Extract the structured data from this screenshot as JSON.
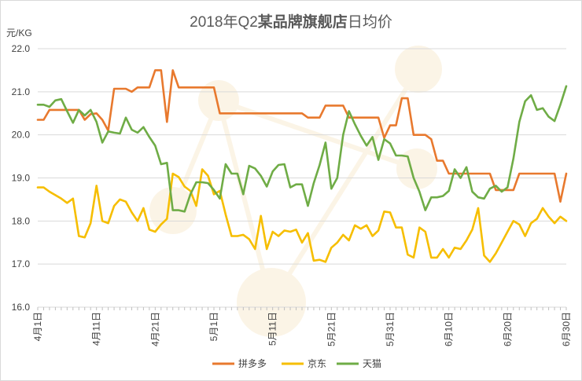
{
  "chart_data": {
    "type": "line",
    "title_prefix": "2018年Q2",
    "title_bold": "某品牌旗舰店",
    "title_suffix": "日均价",
    "ylabel": "元/KG",
    "ylim": [
      16.0,
      22.0
    ],
    "yticks": [
      "16.0",
      "17.0",
      "18.0",
      "19.0",
      "20.0",
      "21.0",
      "22.0"
    ],
    "xtick_labels": [
      "4月1日",
      "4月11日",
      "4月21日",
      "5月1日",
      "5月11日",
      "5月21日",
      "5月31日",
      "6月10日",
      "6月20日",
      "6月30日"
    ],
    "xtick_days": [
      0,
      10,
      20,
      30,
      40,
      50,
      60,
      70,
      80,
      90
    ],
    "n_days": 91,
    "series": [
      {
        "name": "拼多多",
        "color": "#E8792E",
        "values": [
          20.35,
          20.35,
          20.58,
          20.58,
          20.58,
          20.58,
          20.58,
          20.58,
          20.35,
          20.48,
          20.5,
          20.35,
          20.1,
          21.07,
          21.07,
          21.07,
          21.0,
          21.1,
          21.1,
          21.1,
          21.5,
          21.5,
          20.3,
          21.5,
          21.1,
          21.1,
          21.1,
          21.1,
          21.1,
          21.1,
          21.1,
          20.5,
          20.5,
          20.5,
          20.5,
          20.5,
          20.5,
          20.5,
          20.5,
          20.5,
          20.5,
          20.5,
          20.5,
          20.5,
          20.5,
          20.5,
          20.4,
          20.4,
          20.4,
          20.68,
          20.68,
          20.68,
          20.68,
          20.4,
          20.4,
          20.4,
          20.4,
          20.4,
          20.4,
          19.93,
          20.22,
          20.22,
          20.85,
          20.85,
          20.0,
          20.0,
          20.0,
          19.9,
          19.4,
          19.4,
          19.1,
          19.1,
          19.1,
          19.1,
          19.1,
          19.1,
          19.1,
          19.1,
          18.72,
          18.72,
          18.72,
          18.72,
          19.1,
          19.1,
          19.1,
          19.1,
          19.1,
          19.1,
          19.1,
          18.45,
          19.1
        ]
      },
      {
        "name": "京东",
        "color": "#F6BE00",
        "values": [
          18.78,
          18.78,
          18.68,
          18.6,
          18.52,
          18.42,
          18.52,
          17.65,
          17.62,
          17.95,
          18.82,
          18.0,
          17.95,
          18.35,
          18.5,
          18.45,
          18.2,
          18.0,
          18.3,
          17.8,
          17.75,
          17.92,
          18.05,
          19.1,
          19.02,
          18.8,
          18.7,
          18.35,
          19.2,
          19.05,
          18.62,
          18.7,
          18.15,
          17.65,
          17.65,
          17.68,
          17.58,
          17.35,
          18.12,
          17.35,
          17.75,
          17.65,
          17.78,
          17.75,
          17.8,
          17.5,
          17.72,
          17.08,
          17.1,
          17.05,
          17.38,
          17.5,
          17.68,
          17.55,
          17.9,
          17.82,
          17.9,
          17.65,
          17.78,
          18.22,
          18.2,
          17.85,
          17.85,
          17.22,
          17.15,
          17.85,
          17.75,
          17.15,
          17.15,
          17.35,
          17.15,
          17.38,
          17.35,
          17.55,
          17.8,
          18.3,
          17.2,
          17.05,
          17.25,
          17.5,
          17.75,
          18.0,
          17.92,
          17.65,
          17.95,
          18.05,
          18.3,
          18.1,
          17.95,
          18.1,
          18.0
        ]
      },
      {
        "name": "天猫",
        "color": "#6FAC46",
        "values": [
          20.7,
          20.7,
          20.65,
          20.8,
          20.83,
          20.55,
          20.28,
          20.58,
          20.45,
          20.58,
          20.3,
          19.82,
          20.08,
          20.05,
          20.03,
          20.4,
          20.12,
          20.05,
          20.18,
          19.95,
          19.75,
          19.32,
          19.35,
          18.25,
          18.25,
          18.22,
          18.62,
          18.9,
          18.9,
          18.88,
          18.72,
          18.52,
          19.32,
          19.1,
          19.1,
          18.62,
          19.28,
          19.22,
          19.05,
          18.8,
          19.15,
          19.3,
          19.32,
          18.78,
          18.85,
          18.85,
          18.35,
          18.88,
          19.3,
          19.82,
          18.75,
          19.0,
          20.0,
          20.55,
          20.25,
          19.98,
          19.75,
          19.95,
          19.42,
          19.9,
          19.8,
          19.52,
          19.52,
          19.5,
          19.0,
          18.68,
          18.25,
          18.55,
          18.55,
          18.58,
          18.7,
          19.2,
          19.0,
          19.25,
          18.68,
          18.55,
          18.52,
          18.75,
          18.82,
          18.68,
          18.78,
          19.45,
          20.3,
          20.78,
          20.92,
          20.58,
          20.62,
          20.42,
          20.32,
          20.7,
          21.13
        ]
      }
    ]
  }
}
